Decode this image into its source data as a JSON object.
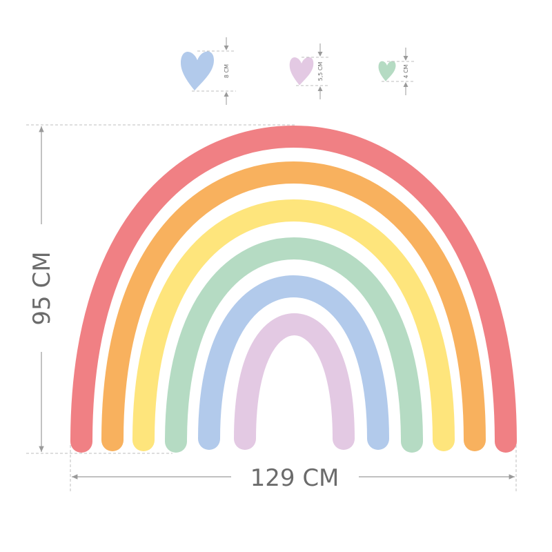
{
  "dimensions": {
    "height": "95 CM",
    "width": "129 CM"
  },
  "hearts": [
    {
      "label": "8 CM",
      "color": "#B2CAEB"
    },
    {
      "label": "5,5 CM",
      "color": "#E3C9E3"
    },
    {
      "label": "4 CM",
      "color": "#B5DBC3"
    }
  ],
  "rainbow_bands": [
    {
      "color": "#F08084"
    },
    {
      "color": "#F8B15E"
    },
    {
      "color": "#FEE57C"
    },
    {
      "color": "#B5DBC3"
    },
    {
      "color": "#B2CAEB"
    },
    {
      "color": "#E3C9E3"
    }
  ],
  "guide_color": "#9a9a9a"
}
